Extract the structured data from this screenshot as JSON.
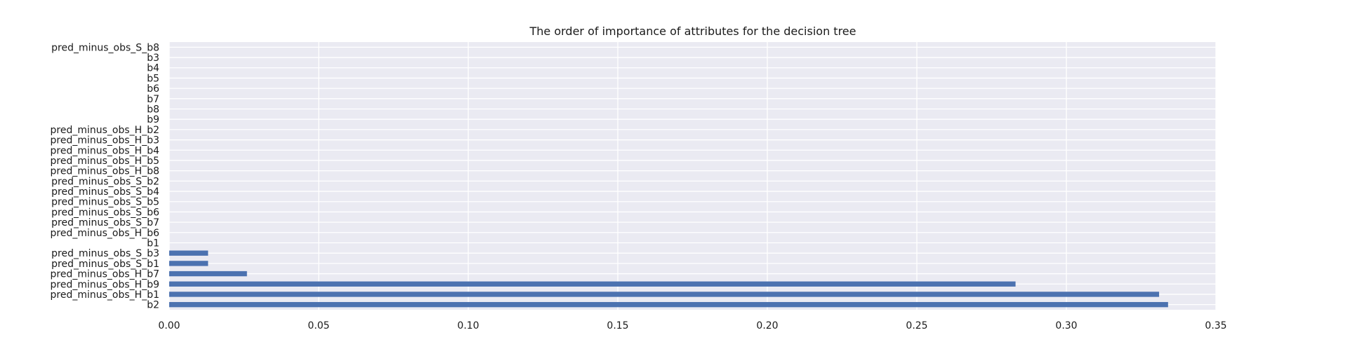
{
  "chart_data": {
    "type": "bar",
    "orientation": "horizontal",
    "title": "The order of importance of attributes for the decision tree",
    "xlabel": "",
    "ylabel": "",
    "xlim": [
      0,
      0.35
    ],
    "xticks": [
      "0.00",
      "0.05",
      "0.10",
      "0.15",
      "0.20",
      "0.25",
      "0.30",
      "0.35"
    ],
    "grid": true,
    "background_color": "#eaeaf2",
    "bar_color": "#4c72b0",
    "categories": [
      "pred_minus_obs_S_b8",
      "b3",
      "b4",
      "b5",
      "b6",
      "b7",
      "b8",
      "b9",
      "pred_minus_obs_H_b2",
      "pred_minus_obs_H_b3",
      "pred_minus_obs_H_b4",
      "pred_minus_obs_H_b5",
      "pred_minus_obs_H_b8",
      "pred_minus_obs_S_b2",
      "pred_minus_obs_S_b4",
      "pred_minus_obs_S_b5",
      "pred_minus_obs_S_b6",
      "pred_minus_obs_S_b7",
      "pred_minus_obs_H_b6",
      "b1",
      "pred_minus_obs_S_b3",
      "pred_minus_obs_S_b1",
      "pred_minus_obs_H_b7",
      "pred_minus_obs_H_b9",
      "pred_minus_obs_H_b1",
      "b2"
    ],
    "values": [
      0,
      0,
      0,
      0,
      0,
      0,
      0,
      0,
      0,
      0,
      0,
      0,
      0,
      0,
      0,
      0,
      0,
      0,
      0,
      0,
      0.013,
      0.013,
      0.026,
      0.283,
      0.331,
      0.334
    ]
  }
}
